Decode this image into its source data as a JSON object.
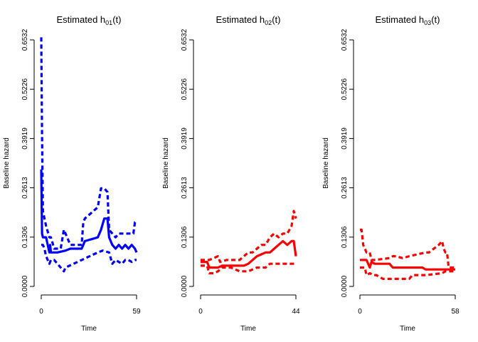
{
  "chart_data": [
    {
      "type": "line",
      "title": "Estimated h",
      "title_sub": "01",
      "title_tail": "(t)",
      "xlabel": "Time",
      "ylabel": "Baseline hazard",
      "xticks": [
        "0",
        "59"
      ],
      "xlim": [
        0,
        59
      ],
      "yticks": [
        "0.0000",
        "0.1306",
        "0.2613",
        "0.3919",
        "0.5226",
        "0.6532"
      ],
      "ylim": [
        0,
        0.6532
      ],
      "color": "#0000ff",
      "series": [
        {
          "role": "estimate",
          "style": "solid",
          "x": [
            0,
            0.5,
            1,
            3,
            5,
            5.5,
            6,
            10,
            15,
            18,
            25,
            26,
            27,
            35,
            37,
            39,
            41,
            42,
            44,
            46,
            48,
            50,
            52,
            54,
            56,
            58,
            59
          ],
          "y": [
            0.31,
            0.14,
            0.13,
            0.13,
            0.09,
            0.11,
            0.09,
            0.09,
            0.095,
            0.1,
            0.1,
            0.11,
            0.12,
            0.13,
            0.15,
            0.18,
            0.18,
            0.13,
            0.11,
            0.1,
            0.11,
            0.1,
            0.11,
            0.1,
            0.11,
            0.1,
            0.09
          ]
        },
        {
          "role": "upper",
          "style": "dashed",
          "x": [
            0,
            0.5,
            1,
            3,
            5,
            6,
            8,
            12,
            14,
            18,
            25,
            26,
            27,
            35,
            37,
            39,
            41,
            42,
            44,
            46,
            48,
            50,
            52,
            56,
            57,
            58,
            59
          ],
          "y": [
            0.66,
            0.4,
            0.2,
            0.16,
            0.13,
            0.13,
            0.1,
            0.1,
            0.15,
            0.11,
            0.11,
            0.17,
            0.18,
            0.21,
            0.26,
            0.26,
            0.25,
            0.15,
            0.14,
            0.13,
            0.14,
            0.14,
            0.14,
            0.14,
            0.14,
            0.17,
            0.17
          ]
        },
        {
          "role": "lower",
          "style": "dashed",
          "x": [
            0,
            1,
            2,
            3,
            5,
            6,
            8,
            10,
            12,
            14,
            15,
            20,
            25,
            30,
            35,
            38,
            42,
            44,
            46,
            48,
            50,
            52,
            54,
            56,
            58,
            59
          ],
          "y": [
            0.11,
            0.11,
            0.1,
            0.08,
            0.06,
            0.07,
            0.07,
            0.06,
            0.05,
            0.04,
            0.05,
            0.06,
            0.07,
            0.08,
            0.09,
            0.095,
            0.09,
            0.06,
            0.07,
            0.065,
            0.06,
            0.07,
            0.07,
            0.065,
            0.07,
            0.07
          ]
        }
      ]
    },
    {
      "type": "line",
      "title": "Estimated h",
      "title_sub": "02",
      "title_tail": "(t)",
      "xlabel": "Time",
      "ylabel": "Baseline hazard",
      "xticks": [
        "0",
        "44"
      ],
      "xlim": [
        0,
        44
      ],
      "yticks": [
        "0.0000",
        "0.1306",
        "0.2613",
        "0.3919",
        "0.5226",
        "0.6532"
      ],
      "ylim": [
        0,
        0.6532
      ],
      "color": "#ff0000",
      "series": [
        {
          "role": "estimate",
          "style": "solid",
          "x": [
            0,
            3,
            4,
            8,
            10,
            12,
            20,
            22,
            24,
            26,
            28,
            30,
            32,
            34,
            36,
            38,
            40,
            42,
            43,
            44
          ],
          "y": [
            0.065,
            0.065,
            0.05,
            0.05,
            0.055,
            0.055,
            0.055,
            0.06,
            0.07,
            0.08,
            0.085,
            0.09,
            0.09,
            0.1,
            0.11,
            0.12,
            0.11,
            0.12,
            0.12,
            0.08
          ]
        },
        {
          "role": "upper",
          "style": "dashed",
          "x": [
            0,
            3,
            4,
            8,
            9,
            12,
            18,
            20,
            22,
            24,
            26,
            28,
            30,
            32,
            34,
            36,
            38,
            40,
            41,
            42,
            43,
            44
          ],
          "y": [
            0.07,
            0.07,
            0.07,
            0.08,
            0.065,
            0.07,
            0.07,
            0.08,
            0.09,
            0.09,
            0.1,
            0.11,
            0.11,
            0.13,
            0.14,
            0.13,
            0.14,
            0.14,
            0.15,
            0.16,
            0.2,
            0.18
          ]
        },
        {
          "role": "lower",
          "style": "dashed",
          "x": [
            0,
            3,
            4,
            6,
            8,
            10,
            14,
            18,
            22,
            26,
            30,
            32,
            36,
            40,
            44
          ],
          "y": [
            0.055,
            0.055,
            0.035,
            0.035,
            0.04,
            0.05,
            0.05,
            0.04,
            0.04,
            0.05,
            0.05,
            0.06,
            0.06,
            0.06,
            0.06
          ]
        }
      ]
    },
    {
      "type": "line",
      "title": "Estimated h",
      "title_sub": "03",
      "title_tail": "(t)",
      "xlabel": "Time",
      "ylabel": "Baseline hazard",
      "xticks": [
        "0",
        "58"
      ],
      "xlim": [
        0,
        58
      ],
      "yticks": [
        "0.0000",
        "0.1306",
        "0.2613",
        "0.3919",
        "0.5226",
        "0.6532"
      ],
      "ylim": [
        0,
        0.6532
      ],
      "color": "#ff0000",
      "series": [
        {
          "role": "estimate",
          "style": "solid",
          "x": [
            0,
            4,
            6,
            7,
            9,
            18,
            20,
            38,
            40,
            50,
            52,
            56,
            58
          ],
          "y": [
            0.07,
            0.07,
            0.05,
            0.065,
            0.06,
            0.06,
            0.05,
            0.05,
            0.045,
            0.045,
            0.045,
            0.045,
            0.045
          ]
        },
        {
          "role": "upper",
          "style": "dashed",
          "x": [
            0,
            1,
            2,
            3,
            4,
            5,
            6,
            7,
            9,
            18,
            20,
            22,
            26,
            30,
            40,
            42,
            48,
            50,
            51,
            52,
            53,
            54,
            58
          ],
          "y": [
            0.15,
            0.15,
            0.11,
            0.1,
            0.09,
            0.09,
            0.09,
            0.07,
            0.07,
            0.075,
            0.08,
            0.08,
            0.075,
            0.08,
            0.09,
            0.09,
            0.11,
            0.12,
            0.1,
            0.09,
            0.09,
            0.05,
            0.05
          ]
        },
        {
          "role": "lower",
          "style": "dashed",
          "x": [
            0,
            3,
            4,
            6,
            8,
            10,
            14,
            16,
            18,
            30,
            32,
            40,
            50,
            52,
            58
          ],
          "y": [
            0.05,
            0.05,
            0.03,
            0.035,
            0.03,
            0.03,
            0.02,
            0.02,
            0.02,
            0.02,
            0.03,
            0.03,
            0.035,
            0.04,
            0.04
          ]
        }
      ]
    }
  ]
}
